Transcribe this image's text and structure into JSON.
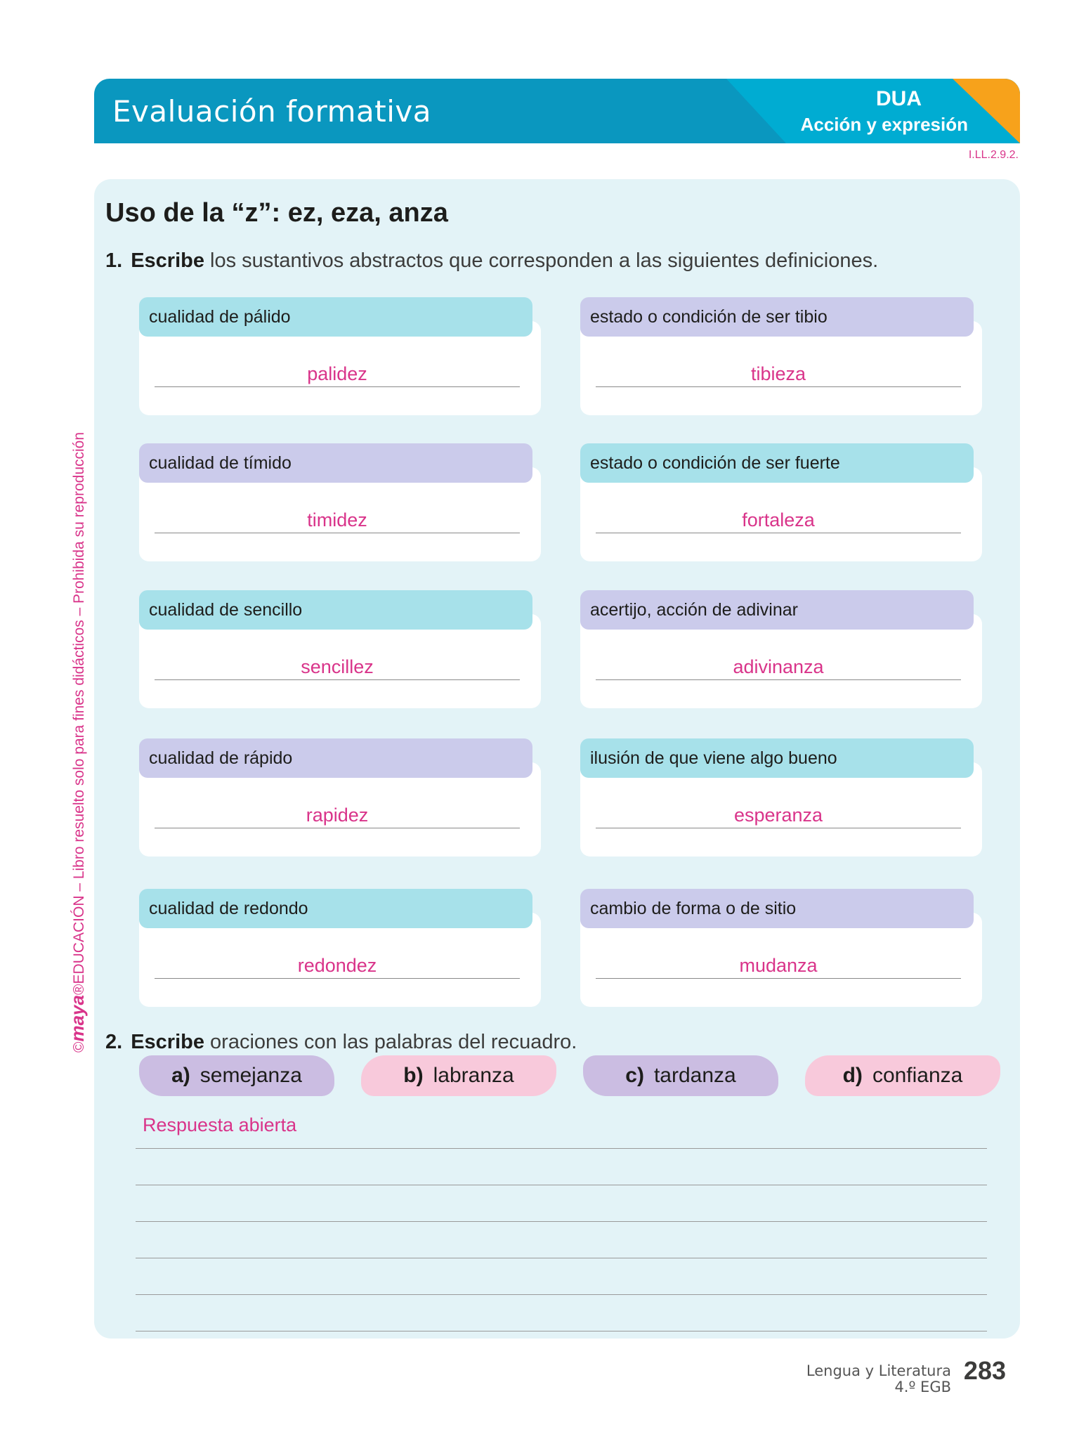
{
  "header": {
    "title": "Evaluación formativa",
    "dua": "DUA",
    "dua_sub": "Acción y expresión",
    "code": "I.LL.2.9.2."
  },
  "section": {
    "title": "Uso de la “z”: ez, eza, anza"
  },
  "exercise1": {
    "num": "1.",
    "verb": "Escribe",
    "rest": " los sustantivos abstractos que corresponden a las siguientes definiciones.",
    "cards": [
      {
        "definition": "cualidad de pálido",
        "answer": "palidez"
      },
      {
        "definition": "estado o condición de ser tibio",
        "answer": "tibieza"
      },
      {
        "definition": "cualidad de tímido",
        "answer": "timidez"
      },
      {
        "definition": "estado o condición de ser fuerte",
        "answer": "fortaleza"
      },
      {
        "definition": "cualidad de sencillo",
        "answer": "sencillez"
      },
      {
        "definition": "acertijo, acción de adivinar",
        "answer": "adivinanza"
      },
      {
        "definition": "cualidad de rápido",
        "answer": "rapidez"
      },
      {
        "definition": "ilusión de que viene algo bueno",
        "answer": "esperanza"
      },
      {
        "definition": "cualidad de redondo",
        "answer": "redondez"
      },
      {
        "definition": "cambio de forma o de sitio",
        "answer": "mudanza"
      }
    ]
  },
  "exercise2": {
    "num": "2.",
    "verb": "Escribe",
    "rest": " oraciones con las palabras del recuadro.",
    "words": [
      {
        "letter": "a)",
        "word": "semejanza"
      },
      {
        "letter": "b)",
        "word": "labranza"
      },
      {
        "letter": "c)",
        "word": "tardanza"
      },
      {
        "letter": "d)",
        "word": "confianza"
      }
    ],
    "response": "Respuesta abierta"
  },
  "side_note": {
    "copyright": "©",
    "brand": "maya",
    "reg": "®",
    "text": "EDUCACIÓN – Libro resuelto solo para fines didácticos – Prohibida su reproducción"
  },
  "footer": {
    "subject": "Lengua y Literatura",
    "grade": "4.º EGB",
    "page": "283"
  },
  "colors": {
    "header": "#0a97bf",
    "dua": "#00acd2",
    "accent_orange": "#f7a21b",
    "answer_magenta": "#d9348a",
    "panel": "#e3f3f7",
    "card_cyan": "#a7e1ea",
    "card_lavender": "#cbcbeb",
    "chip_pink": "#f8c9db"
  }
}
